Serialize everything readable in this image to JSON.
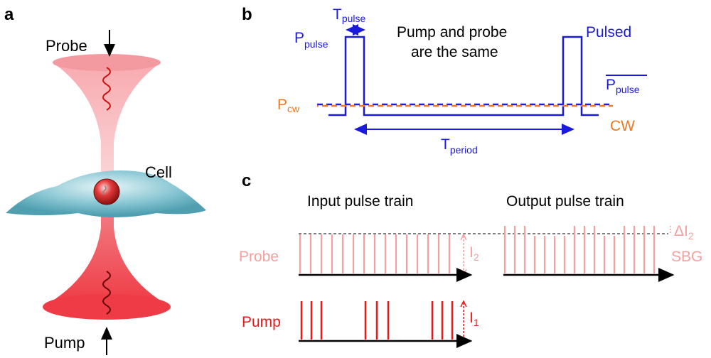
{
  "panels": {
    "a": "a",
    "b": "b",
    "c": "c"
  },
  "panel_a": {
    "probe": "Probe",
    "pump": "Pump",
    "cell": "Cell"
  },
  "panel_b": {
    "t_main": "T",
    "t_sub": "pulse",
    "p_main": "P",
    "p_sub": "pulse",
    "note_line1": "Pump and probe",
    "note_line2": "are the same",
    "pulsed": "Pulsed",
    "pbar_main": "P",
    "pbar_sub": "pulse",
    "pcw_main": "P",
    "pcw_sub": "cw",
    "cw": "CW",
    "tperiod_main": "T",
    "tperiod_sub": "period"
  },
  "panel_c": {
    "input_title": "Input pulse train",
    "output_title": "Output pulse train",
    "probe": "Probe",
    "pump": "Pump",
    "i2_main": "I",
    "i2_sub": "2",
    "i1_main": "I",
    "i1_sub": "1",
    "di2_main": "ΔI",
    "di2_sub": "2",
    "sbg": "SBG"
  },
  "colors": {
    "blue": "#1a1adc",
    "orange": "#ee7722",
    "probe_pink": "#f5a0a0",
    "pump_red": "#e81818",
    "cell": "#6fb6c6"
  }
}
